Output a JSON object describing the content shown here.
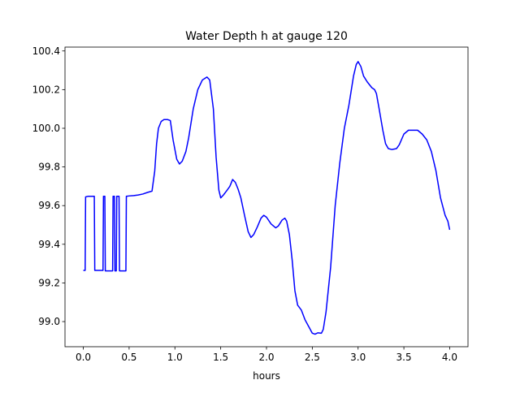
{
  "chart_data": {
    "type": "line",
    "title": "Water Depth h at gauge 120",
    "xlabel": "hours",
    "ylabel": "",
    "xlim": [
      -0.2,
      4.2
    ],
    "ylim": [
      98.87,
      100.42
    ],
    "x_ticks": [
      0.0,
      0.5,
      1.0,
      1.5,
      2.0,
      2.5,
      3.0,
      3.5,
      4.0
    ],
    "x_tick_labels": [
      "0.0",
      "0.5",
      "1.0",
      "1.5",
      "2.0",
      "2.5",
      "3.0",
      "3.5",
      "4.0"
    ],
    "y_ticks": [
      99.0,
      99.2,
      99.4,
      99.6,
      99.8,
      100.0,
      100.2,
      100.4
    ],
    "y_tick_labels": [
      "99.0",
      "99.2",
      "99.4",
      "99.6",
      "99.8",
      "100.0",
      "100.2",
      "100.4"
    ],
    "grid": false,
    "series": [
      {
        "color": "#0000ff",
        "points": [
          [
            0.0,
            99.265
          ],
          [
            0.02,
            99.265
          ],
          [
            0.025,
            99.645
          ],
          [
            0.05,
            99.648
          ],
          [
            0.08,
            99.648
          ],
          [
            0.12,
            99.648
          ],
          [
            0.125,
            99.265
          ],
          [
            0.15,
            99.265
          ],
          [
            0.2,
            99.265
          ],
          [
            0.215,
            99.265
          ],
          [
            0.22,
            99.648
          ],
          [
            0.235,
            99.648
          ],
          [
            0.24,
            99.262
          ],
          [
            0.26,
            99.262
          ],
          [
            0.32,
            99.262
          ],
          [
            0.325,
            99.648
          ],
          [
            0.34,
            99.648
          ],
          [
            0.345,
            99.262
          ],
          [
            0.36,
            99.262
          ],
          [
            0.365,
            99.648
          ],
          [
            0.39,
            99.648
          ],
          [
            0.395,
            99.262
          ],
          [
            0.45,
            99.262
          ],
          [
            0.465,
            99.262
          ],
          [
            0.47,
            99.648
          ],
          [
            0.5,
            99.65
          ],
          [
            0.55,
            99.652
          ],
          [
            0.6,
            99.655
          ],
          [
            0.65,
            99.66
          ],
          [
            0.7,
            99.668
          ],
          [
            0.75,
            99.675
          ],
          [
            0.78,
            99.78
          ],
          [
            0.8,
            99.92
          ],
          [
            0.82,
            100.0
          ],
          [
            0.85,
            100.035
          ],
          [
            0.88,
            100.045
          ],
          [
            0.92,
            100.045
          ],
          [
            0.95,
            100.04
          ],
          [
            0.98,
            99.94
          ],
          [
            1.02,
            99.84
          ],
          [
            1.05,
            99.815
          ],
          [
            1.08,
            99.83
          ],
          [
            1.12,
            99.88
          ],
          [
            1.15,
            99.95
          ],
          [
            1.2,
            100.1
          ],
          [
            1.25,
            100.2
          ],
          [
            1.3,
            100.25
          ],
          [
            1.35,
            100.265
          ],
          [
            1.38,
            100.25
          ],
          [
            1.42,
            100.1
          ],
          [
            1.45,
            99.85
          ],
          [
            1.48,
            99.68
          ],
          [
            1.5,
            99.64
          ],
          [
            1.53,
            99.655
          ],
          [
            1.57,
            99.68
          ],
          [
            1.6,
            99.7
          ],
          [
            1.63,
            99.735
          ],
          [
            1.66,
            99.72
          ],
          [
            1.69,
            99.685
          ],
          [
            1.72,
            99.64
          ],
          [
            1.76,
            99.55
          ],
          [
            1.8,
            99.465
          ],
          [
            1.83,
            99.435
          ],
          [
            1.86,
            99.45
          ],
          [
            1.9,
            99.49
          ],
          [
            1.94,
            99.535
          ],
          [
            1.97,
            99.55
          ],
          [
            2.0,
            99.54
          ],
          [
            2.05,
            99.505
          ],
          [
            2.1,
            99.485
          ],
          [
            2.13,
            99.495
          ],
          [
            2.17,
            99.525
          ],
          [
            2.2,
            99.535
          ],
          [
            2.22,
            99.52
          ],
          [
            2.25,
            99.45
          ],
          [
            2.28,
            99.32
          ],
          [
            2.31,
            99.16
          ],
          [
            2.34,
            99.085
          ],
          [
            2.38,
            99.06
          ],
          [
            2.42,
            99.01
          ],
          [
            2.46,
            98.975
          ],
          [
            2.5,
            98.94
          ],
          [
            2.53,
            98.935
          ],
          [
            2.56,
            98.942
          ],
          [
            2.6,
            98.94
          ],
          [
            2.62,
            98.96
          ],
          [
            2.65,
            99.05
          ],
          [
            2.7,
            99.28
          ],
          [
            2.75,
            99.6
          ],
          [
            2.8,
            99.82
          ],
          [
            2.85,
            100.0
          ],
          [
            2.9,
            100.12
          ],
          [
            2.95,
            100.27
          ],
          [
            2.98,
            100.33
          ],
          [
            3.0,
            100.345
          ],
          [
            3.03,
            100.32
          ],
          [
            3.06,
            100.27
          ],
          [
            3.1,
            100.24
          ],
          [
            3.15,
            100.21
          ],
          [
            3.18,
            100.2
          ],
          [
            3.2,
            100.18
          ],
          [
            3.23,
            100.1
          ],
          [
            3.27,
            99.99
          ],
          [
            3.3,
            99.92
          ],
          [
            3.33,
            99.895
          ],
          [
            3.37,
            99.89
          ],
          [
            3.42,
            99.895
          ],
          [
            3.45,
            99.915
          ],
          [
            3.5,
            99.97
          ],
          [
            3.55,
            99.99
          ],
          [
            3.6,
            99.99
          ],
          [
            3.65,
            99.99
          ],
          [
            3.7,
            99.97
          ],
          [
            3.75,
            99.94
          ],
          [
            3.8,
            99.88
          ],
          [
            3.85,
            99.78
          ],
          [
            3.9,
            99.64
          ],
          [
            3.95,
            99.55
          ],
          [
            3.98,
            99.52
          ],
          [
            4.0,
            99.475
          ]
        ]
      }
    ]
  }
}
